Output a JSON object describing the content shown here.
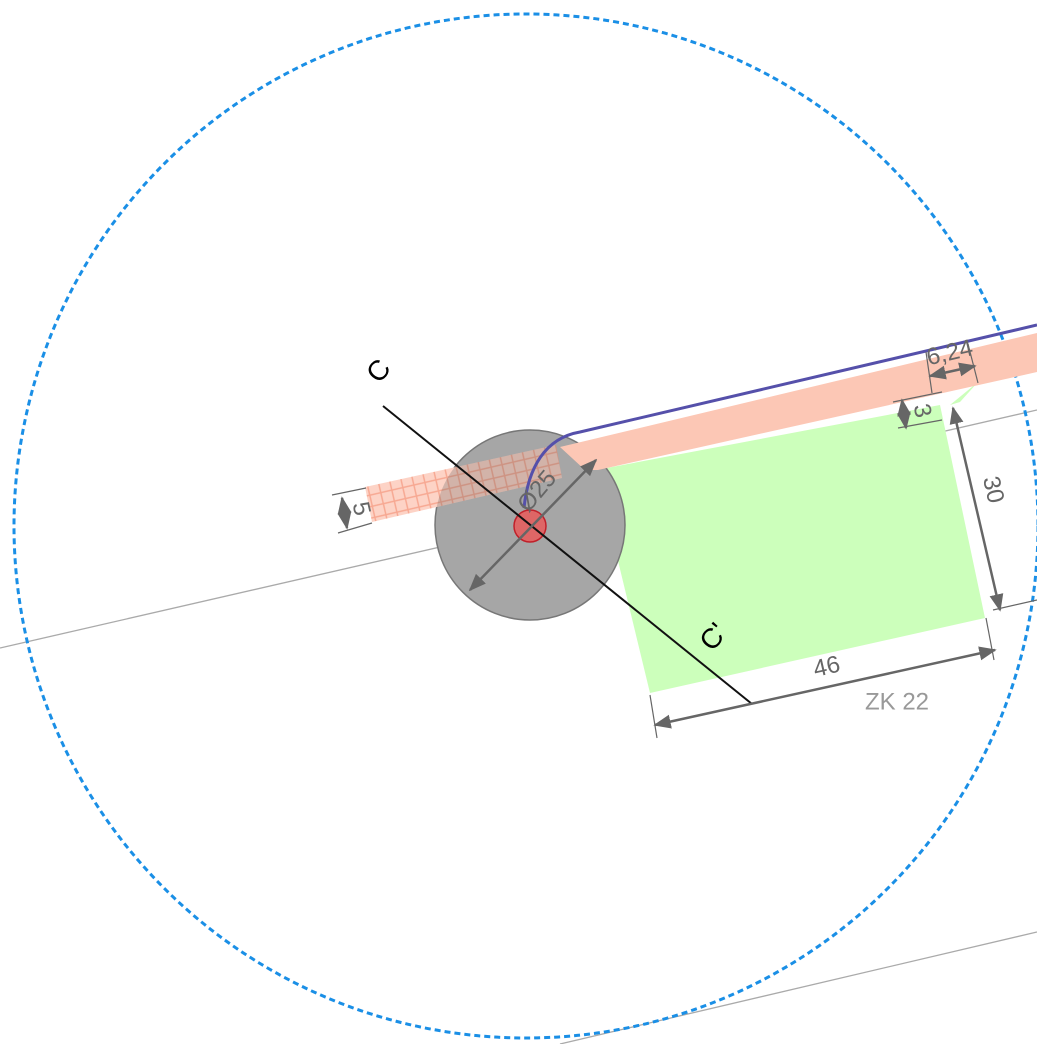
{
  "labels": {
    "section_start": "C",
    "section_end": "C'",
    "diameter": "Ø25",
    "band_width": "5",
    "offset": "6,24",
    "gap": "3",
    "height": "30",
    "width": "46",
    "zone": "ZK 22"
  }
}
